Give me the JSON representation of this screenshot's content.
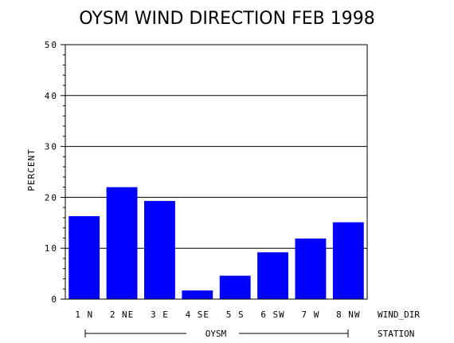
{
  "chart_data": {
    "type": "bar",
    "title": "OYSM WIND DIRECTION FEB 1998",
    "ylabel": "PERCENT",
    "xlabel": "WIND_DIR",
    "group_label": "OYSM",
    "group_axis_label": "STATION",
    "categories": [
      "1 N",
      "2 NE",
      "3 E",
      "4 SE",
      "5 S",
      "6 SW",
      "7 W",
      "8 NW"
    ],
    "values": [
      16.3,
      22.0,
      19.3,
      1.7,
      4.6,
      9.2,
      11.9,
      15.1
    ],
    "ylim": [
      0,
      50
    ],
    "yticks": [
      "0",
      "10",
      "20",
      "30",
      "40",
      "50"
    ],
    "grid": true,
    "bar_color": "#0000ff"
  }
}
